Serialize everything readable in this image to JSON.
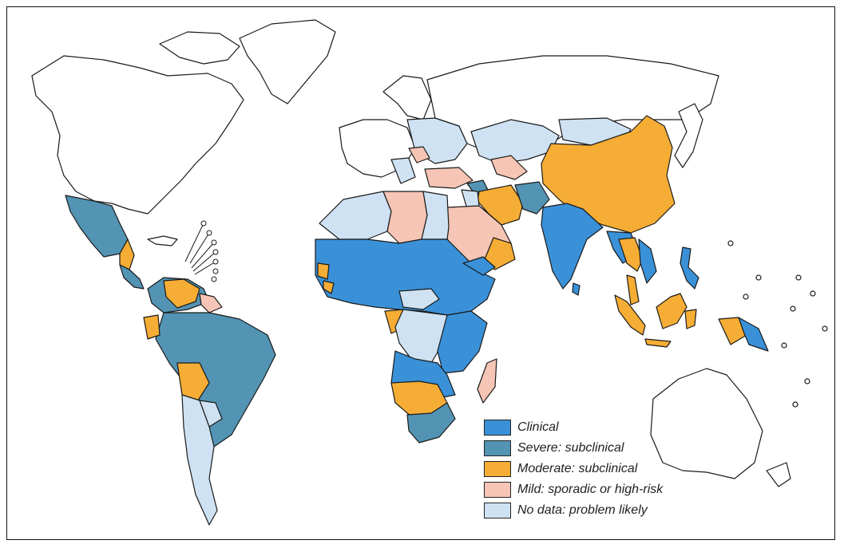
{
  "colors": {
    "clinical": "#3a91d8",
    "severe": "#5393b3",
    "moderate": "#f5ad35",
    "mild": "#f6c5b5",
    "nodata": "#cfe2f3",
    "unaffected": "#ffffff",
    "outline": "#1a1a1a"
  },
  "legend": {
    "items": [
      {
        "label": "Clinical",
        "color": "#3a91d8"
      },
      {
        "label": "Severe: subclinical",
        "color": "#5393b3"
      },
      {
        "label": "Moderate: subclinical",
        "color": "#f5ad35"
      },
      {
        "label": "Mild: sporadic or high-risk",
        "color": "#f6c5b5"
      },
      {
        "label": "No data: problem likely",
        "color": "#cfe2f3"
      }
    ]
  }
}
